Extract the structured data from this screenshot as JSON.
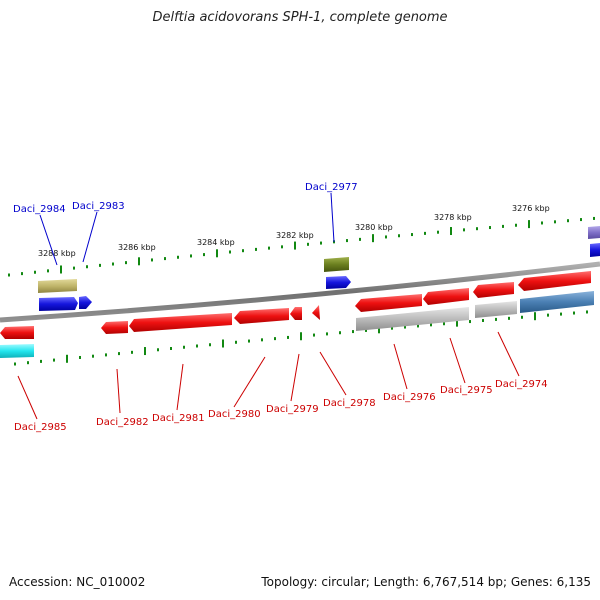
{
  "title": "Delftia acidovorans SPH-1, complete genome",
  "footer": {
    "accession": "Accession: NC_010002",
    "summary": "Topology: circular; Length: 6,767,514 bp; Genes: 6,135"
  },
  "ticks": [
    "3288 kbp",
    "3286 kbp",
    "3284 kbp",
    "3282 kbp",
    "3280 kbp",
    "3278 kbp",
    "3276 kbp"
  ],
  "gene_labels_top": [
    "Daci_2984",
    "Daci_2983",
    "Daci_2977"
  ],
  "gene_labels_bottom": [
    "Daci_2985",
    "Daci_2982",
    "Daci_2981",
    "Daci_2980",
    "Daci_2979",
    "Daci_2978",
    "Daci_2976",
    "Daci_2975",
    "Daci_2974"
  ],
  "colors": {
    "backbone": "#808080",
    "tick": "#118811",
    "top_label": "#0000cc",
    "bottom_label": "#cc0000",
    "gene_red": "#ee1111",
    "gene_blue": "#1515dd",
    "gene_olive": "#6b7f1f",
    "gene_khaki": "#c0b56a",
    "gene_cyan": "#22e6ee",
    "gene_grey": "#bbbbbb",
    "gene_steel": "#4a7fb3",
    "gene_purple": "#8070c8"
  }
}
